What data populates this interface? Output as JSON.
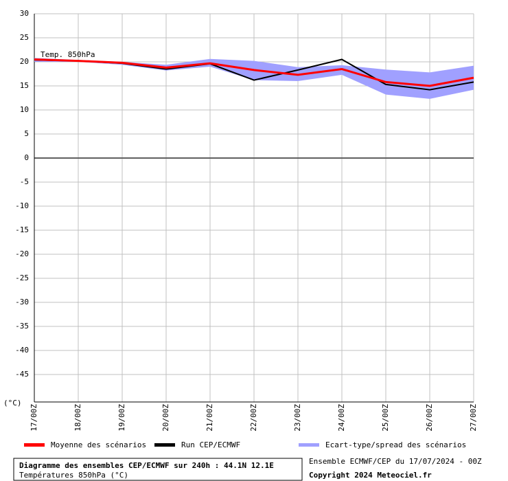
{
  "chart_data": {
    "type": "line",
    "annotation": "Temp. 850hPa",
    "y_unit": "(°C)",
    "categories": [
      "17/00Z",
      "18/00Z",
      "19/00Z",
      "20/00Z",
      "21/00Z",
      "22/00Z",
      "23/00Z",
      "24/00Z",
      "25/00Z",
      "26/00Z",
      "27/00Z"
    ],
    "series": [
      {
        "name": "Moyenne des scénarios",
        "color": "#ff0000",
        "values": [
          20.5,
          20.2,
          19.8,
          18.8,
          19.7,
          18.3,
          17.3,
          18.5,
          15.8,
          15.0,
          16.7
        ]
      },
      {
        "name": "Run CEP/ECMWF",
        "color": "#000000",
        "values": [
          20.4,
          20.2,
          19.7,
          18.5,
          19.6,
          16.2,
          18.3,
          20.5,
          15.3,
          14.2,
          15.8
        ]
      },
      {
        "name": "Ecart-type/spread des scénarios",
        "color": "#a0a0ff",
        "upper": [
          20.8,
          20.4,
          20.0,
          19.4,
          20.6,
          20.2,
          18.9,
          19.3,
          18.4,
          17.8,
          19.2
        ],
        "lower": [
          20.0,
          20.0,
          19.4,
          18.2,
          19.0,
          16.2,
          16.0,
          17.3,
          13.2,
          12.3,
          14.2
        ]
      }
    ],
    "ylim": [
      -50,
      30
    ],
    "yticks": [
      30,
      25,
      20,
      15,
      10,
      5,
      0,
      -5,
      -10,
      -15,
      -20,
      -25,
      -30,
      -35,
      -40,
      -45
    ],
    "grid": true,
    "footer": {
      "title": "Diagramme des ensembles CEP/ECMWF sur 240h : 44.1N 12.1E",
      "subtitle": "Températures 850hPa (°C)",
      "run": "Ensemble ECMWF/CEP du 17/07/2024 - 00Z",
      "copyright": "Copyright 2024 Meteociel.fr"
    }
  }
}
